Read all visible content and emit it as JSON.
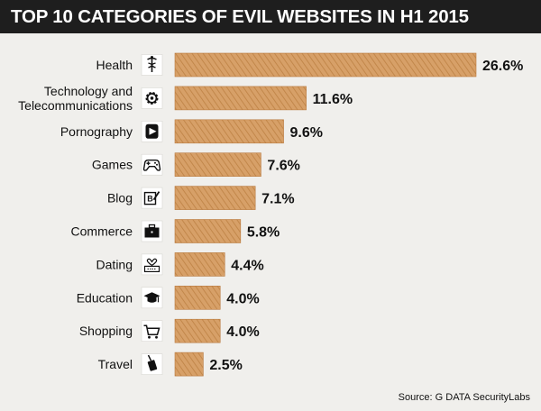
{
  "title": "TOP 10 CATEGORIES OF EVIL WEBSITES IN H1 2015",
  "source": "Source: G DATA SecurityLabs",
  "colors": {
    "bar": "#d29a60",
    "bar_edge": "#b97a3f",
    "icon_box": "#ffffff",
    "icon": "#111111",
    "title_bg": "#1e1e1e",
    "background": "#f0efec"
  },
  "chart_data": {
    "type": "bar",
    "orientation": "horizontal",
    "title": "TOP 10 CATEGORIES OF EVIL WEBSITES IN H1 2015",
    "xlabel": "",
    "ylabel": "",
    "xlim": [
      0,
      26.6
    ],
    "grid": false,
    "legend": "none",
    "categories": [
      {
        "label": [
          "Health"
        ],
        "value": 26.6,
        "value_label": "26.6%",
        "icon": "caduceus-icon"
      },
      {
        "label": [
          "Technology and",
          "Telecommunications"
        ],
        "value": 11.6,
        "value_label": "11.6%",
        "icon": "gear-icon"
      },
      {
        "label": [
          "Pornography"
        ],
        "value": 9.6,
        "value_label": "9.6%",
        "icon": "play-badge-icon"
      },
      {
        "label": [
          "Games"
        ],
        "value": 7.6,
        "value_label": "7.6%",
        "icon": "gamepad-icon"
      },
      {
        "label": [
          "Blog"
        ],
        "value": 7.1,
        "value_label": "7.1%",
        "icon": "blog-edit-icon"
      },
      {
        "label": [
          "Commerce"
        ],
        "value": 5.8,
        "value_label": "5.8%",
        "icon": "briefcase-icon"
      },
      {
        "label": [
          "Dating"
        ],
        "value": 4.4,
        "value_label": "4.4%",
        "icon": "heart-keyboard-icon"
      },
      {
        "label": [
          "Education"
        ],
        "value": 4.0,
        "value_label": "4.0%",
        "icon": "graduation-cap-icon"
      },
      {
        "label": [
          "Shopping"
        ],
        "value": 4.0,
        "value_label": "4.0%",
        "icon": "shopping-cart-icon"
      },
      {
        "label": [
          "Travel"
        ],
        "value": 2.5,
        "value_label": "2.5%",
        "icon": "luggage-icon"
      }
    ]
  }
}
